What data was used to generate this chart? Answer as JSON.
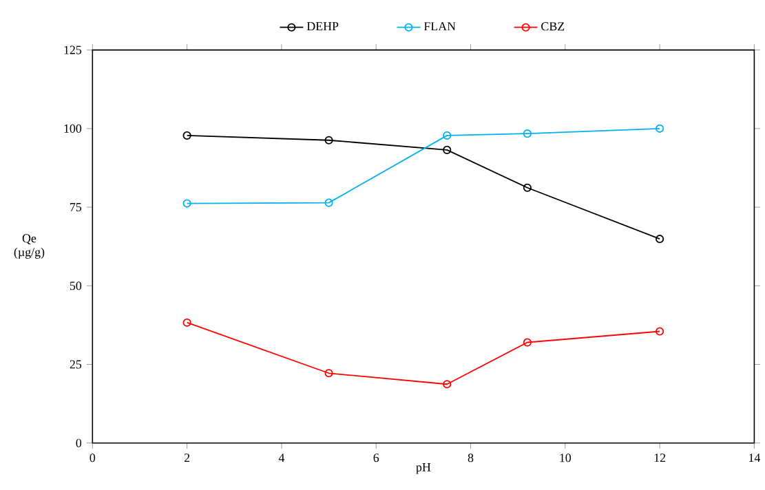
{
  "chart_data": {
    "type": "line",
    "xlabel": "pH",
    "ylabel": "Qe (µg/g)",
    "x": [
      2,
      5,
      7.5,
      9.2,
      12
    ],
    "series": [
      {
        "name": "DEHP",
        "color": "#000000",
        "values": [
          97.8,
          96.3,
          93.2,
          81.2,
          64.9
        ]
      },
      {
        "name": "FLAN",
        "color": "#00b0f0",
        "values": [
          76.2,
          76.4,
          97.8,
          98.4,
          100.0
        ]
      },
      {
        "name": "CBZ",
        "color": "#ff0000",
        "values": [
          38.3,
          22.2,
          18.7,
          32.0,
          35.5
        ]
      }
    ],
    "xlim": [
      0,
      14
    ],
    "xticks": [
      0,
      2,
      4,
      6,
      8,
      10,
      12,
      14
    ],
    "ylim": [
      0,
      125
    ],
    "yticks": [
      0,
      25,
      50,
      75,
      100,
      125
    ],
    "legend": "top",
    "marker": "circle",
    "line_style": "solid",
    "grid": false
  }
}
